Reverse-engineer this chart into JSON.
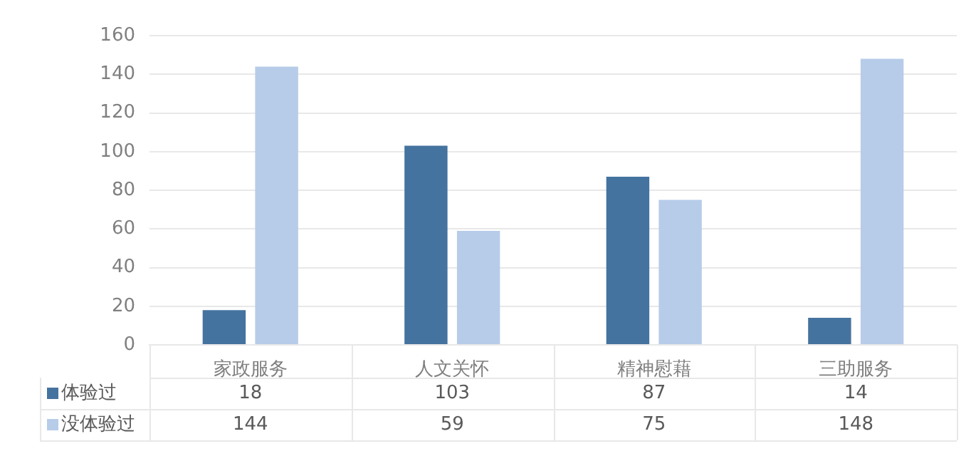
{
  "chart_data": {
    "type": "bar",
    "categories": [
      "家政服务",
      "人文关怀",
      "精神慰藉",
      "三助服务"
    ],
    "series": [
      {
        "name": "体验过",
        "color": "#45739f",
        "values": [
          18,
          103,
          87,
          14
        ]
      },
      {
        "name": "没体验过",
        "color": "#b7cce9",
        "values": [
          144,
          59,
          75,
          148
        ]
      }
    ],
    "ylim": [
      0,
      160
    ],
    "yticks": [
      0,
      20,
      40,
      60,
      80,
      100,
      120,
      140,
      160
    ],
    "grid": "y",
    "legend": "bottom",
    "data_labels": true
  }
}
